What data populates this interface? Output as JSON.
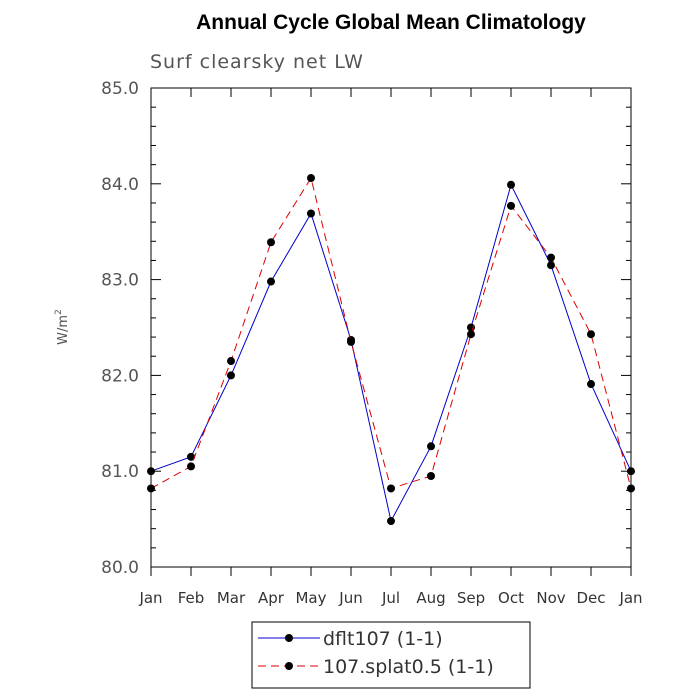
{
  "chart_data": {
    "type": "line",
    "title": "Annual Cycle Global Mean Climatology",
    "subtitle": "Surf clearsky net LW",
    "ylabel_base": "W/m",
    "ylabel_sup": "2",
    "ylim": [
      80.0,
      85.0
    ],
    "yticks": [
      "80.0",
      "81.0",
      "82.0",
      "83.0",
      "84.0",
      "85.0"
    ],
    "categories": [
      "Jan",
      "Feb",
      "Mar",
      "Apr",
      "May",
      "Jun",
      "Jul",
      "Aug",
      "Sep",
      "Oct",
      "Nov",
      "Dec",
      "Jan"
    ],
    "series": [
      {
        "name": "dflt107 (1-1)",
        "color": "#0000cc",
        "dash": "solid",
        "values": [
          81.0,
          81.15,
          82.0,
          82.98,
          83.69,
          82.37,
          80.48,
          81.26,
          82.5,
          83.99,
          83.15,
          81.91,
          81.0
        ]
      },
      {
        "name": "107.splat0.5 (1-1)",
        "color": "#dd0000",
        "dash": "dashed",
        "values": [
          80.82,
          81.05,
          82.15,
          83.39,
          84.06,
          82.35,
          80.82,
          80.95,
          82.43,
          83.77,
          83.23,
          82.43,
          80.82
        ]
      }
    ],
    "legend_position": "bottom-center"
  }
}
